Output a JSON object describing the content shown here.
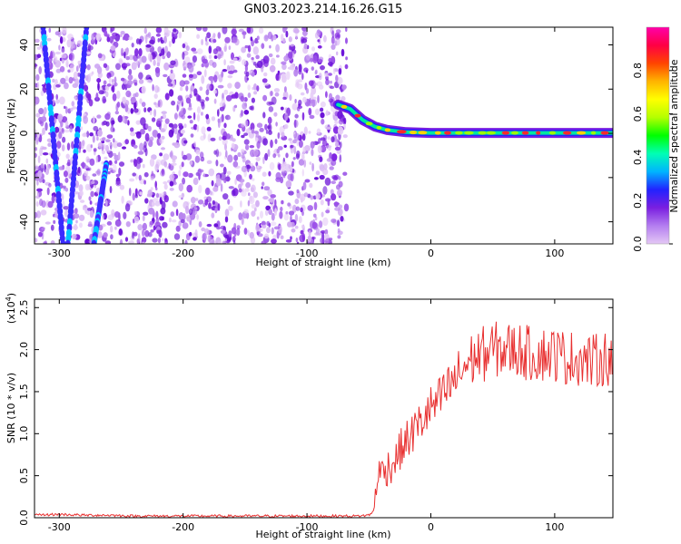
{
  "figure": {
    "title": "GN03.2023.214.16.26.G15"
  },
  "chart_data": [
    {
      "type": "heatmap",
      "title": "GN03.2023.214.16.26.G15",
      "xlabel": "Height of straight line (km)",
      "ylabel": "Frequency (Hz)",
      "xlim": [
        -320,
        147
      ],
      "ylim": [
        -50,
        48
      ],
      "xticks": [
        -300,
        -200,
        -100,
        0,
        100
      ],
      "xtick_labels": [
        "-300",
        "-200",
        "-100",
        "0",
        "100"
      ],
      "yticks": [
        -40,
        -20,
        0,
        20,
        40
      ],
      "ytick_labels": [
        "-40",
        "-20",
        "0",
        "20",
        "40"
      ],
      "colorbar": {
        "label": "Normalized spectral amplitude",
        "range": [
          0,
          1
        ],
        "ticks": [
          "0.0",
          "0.2",
          "0.4",
          "0.6",
          "0.8"
        ],
        "colors": [
          "#e4c8f5",
          "#b47ef0",
          "#7a1fe0",
          "#2222ff",
          "#00b4ff",
          "#00ffb4",
          "#00ff00",
          "#b4ff00",
          "#ffff00",
          "#ffb400",
          "#ff4400",
          "#ff0044",
          "#ff00aa"
        ]
      },
      "noise_region_x": [
        -320,
        -68
      ],
      "ridge": [
        {
          "x": -75,
          "y": 13
        },
        {
          "x": -65,
          "y": 11
        },
        {
          "x": -55,
          "y": 6
        },
        {
          "x": -45,
          "y": 3
        },
        {
          "x": -35,
          "y": 1.5
        },
        {
          "x": -20,
          "y": 0.5
        },
        {
          "x": 0,
          "y": 0.2
        },
        {
          "x": 50,
          "y": 0.2
        },
        {
          "x": 147,
          "y": 0.2
        }
      ],
      "aliased_tracks": [
        {
          "x_start": -313,
          "y_start": 48,
          "x_end": -297,
          "y_end": -50
        },
        {
          "x_start": -278,
          "y_start": 48,
          "x_end": -293,
          "y_end": -50
        },
        {
          "x_start": -262,
          "y_start": -14,
          "x_end": -272,
          "y_end": -50
        }
      ]
    },
    {
      "type": "line",
      "xlabel": "Height of straight line (km)",
      "ylabel": "SNR (10 * v/v)",
      "y_multiplier_label": "(x10",
      "y_multiplier_exponent": "4",
      "xlim": [
        -320,
        147
      ],
      "ylim": [
        0,
        2.6
      ],
      "xticks": [
        -300,
        -200,
        -100,
        0,
        100
      ],
      "xtick_labels": [
        "-300",
        "-200",
        "-100",
        "0",
        "100"
      ],
      "yticks": [
        0,
        0.5,
        1.0,
        1.5,
        2.0,
        2.5
      ],
      "ytick_labels": [
        "0.0",
        "0.5",
        "1.0",
        "1.5",
        "2.0",
        "2.5"
      ],
      "line_color": "#e83030",
      "series": [
        {
          "x": [
            -320,
            -300,
            -280,
            -260,
            -240,
            -220,
            -200,
            -180,
            -160,
            -140,
            -120,
            -100,
            -80,
            -60,
            -50,
            -46,
            -44,
            -40,
            -35,
            -30,
            -25,
            -20,
            -15,
            -10,
            -5,
            0,
            5,
            10,
            15,
            20,
            25,
            30,
            35,
            40,
            45,
            50,
            60,
            70,
            80,
            90,
            100,
            110,
            120,
            130,
            140,
            147
          ],
          "y": [
            0.03,
            0.04,
            0.03,
            0.03,
            0.02,
            0.02,
            0.02,
            0.02,
            0.02,
            0.02,
            0.02,
            0.02,
            0.02,
            0.02,
            0.03,
            0.08,
            0.45,
            0.55,
            0.6,
            0.65,
            0.8,
            0.9,
            1.0,
            1.1,
            1.2,
            1.3,
            1.35,
            1.45,
            1.55,
            1.65,
            1.75,
            1.85,
            1.9,
            1.95,
            1.95,
            2.0,
            2.0,
            2.0,
            1.95,
            1.95,
            1.95,
            1.9,
            1.9,
            1.85,
            1.9,
            1.9
          ]
        }
      ]
    }
  ]
}
